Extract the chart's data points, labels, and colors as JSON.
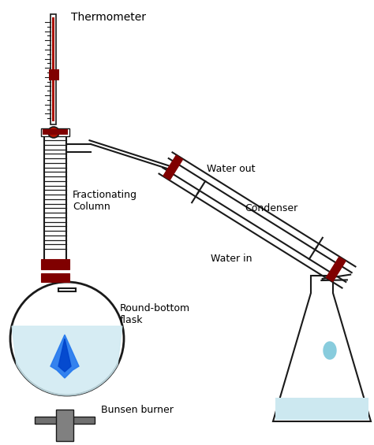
{
  "labels": {
    "thermometer": "Thermometer",
    "fractionating_column": "Fractionating\nColumn",
    "round_bottom_flask": "Round-bottom\nflask",
    "bunsen_burner": "Bunsen burner",
    "water_out": "Water out",
    "condenser": "Condenser",
    "water_in": "Water in"
  },
  "line_color": "#1a1a1a",
  "dark_red": "#800000",
  "flask_fill": "#daf0f5",
  "erlenmeyer_fill": "#f0fbfd",
  "bg_color": "#ffffff",
  "font_size": 9
}
